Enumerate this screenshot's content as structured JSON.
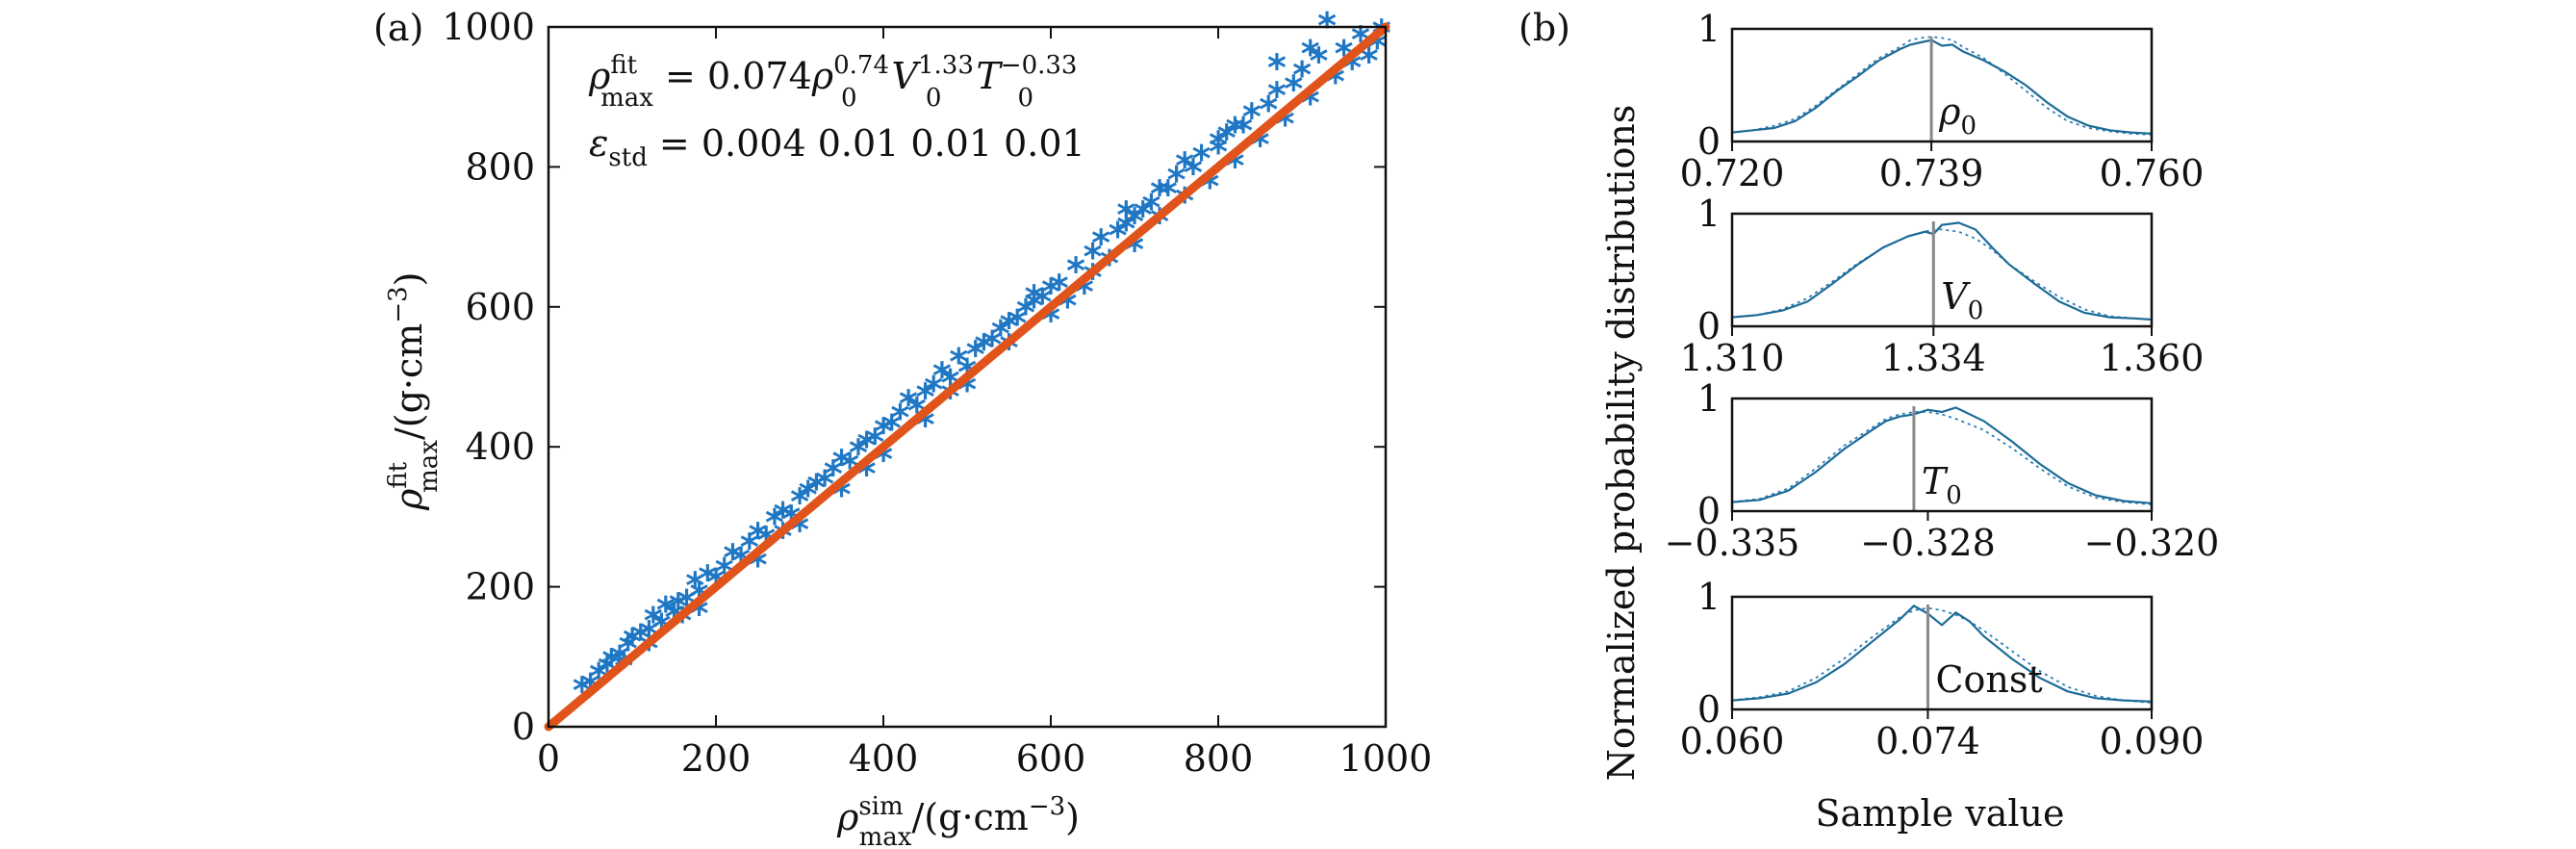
{
  "colors": {
    "scatter": "#1f77c4",
    "fit_line": "#e0541b",
    "pdf_solid": "#1d6b96",
    "pdf_dotted": "#2a7fb5",
    "marker_line": "#888888",
    "axis": "#111111"
  },
  "chart_data": [
    {
      "type": "scatter",
      "panel_label": "(a)",
      "xlabel": "ρ_max^sim/(g·cm⁻³)",
      "ylabel": "ρ_max^fit/(g·cm⁻³)",
      "xlabel_parts": {
        "rho": "ρ",
        "sub": "max",
        "sup": "sim",
        "rest": "/(g·cm",
        "exp": "−3",
        "close": ")"
      },
      "ylabel_parts": {
        "rho": "ρ",
        "sub": "max",
        "sup": "fit",
        "rest": "/(g·cm",
        "exp": "−3",
        "close": ")"
      },
      "xlim": [
        0,
        1000
      ],
      "ylim": [
        0,
        1000
      ],
      "xticks": [
        0,
        200,
        400,
        600,
        800,
        1000
      ],
      "yticks": [
        0,
        200,
        400,
        600,
        800,
        1000
      ],
      "xtick_labels": [
        "0",
        "200",
        "400",
        "600",
        "800",
        "1000"
      ],
      "ytick_labels": [
        "0",
        "200",
        "400",
        "600",
        "800",
        "1000"
      ],
      "marker": "*",
      "annotations": {
        "formula": "ρ_max^fit = 0.074ρ0^0.74 V0^1.33 T0^−0.33",
        "formula_parts": {
          "lhs_rho": "ρ",
          "lhs_sub": "max",
          "lhs_sup": "fit",
          "eq": " = 0.074",
          "rho0": "ρ",
          "rho0_sub": "0",
          "rho0_sup": "0.74",
          "v": "V",
          "v_sub": "0",
          "v_sup": "1.33",
          "t": "T",
          "t_sub": "0",
          "t_sup": "−0.33"
        },
        "std": "ε_std = 0.004 0.01 0.01 0.01",
        "std_parts": {
          "eps": "ε",
          "eps_sub": "std",
          "values": " = 0.004  0.01  0.01  0.01"
        }
      },
      "fit_line": {
        "x": [
          0,
          1000
        ],
        "y": [
          0,
          1000
        ]
      },
      "points": [
        [
          40,
          50
        ],
        [
          50,
          55
        ],
        [
          60,
          70
        ],
        [
          70,
          80
        ],
        [
          75,
          90
        ],
        [
          85,
          95
        ],
        [
          95,
          110
        ],
        [
          100,
          120
        ],
        [
          110,
          125
        ],
        [
          120,
          130
        ],
        [
          125,
          150
        ],
        [
          135,
          140
        ],
        [
          140,
          165
        ],
        [
          150,
          155
        ],
        [
          155,
          170
        ],
        [
          165,
          175
        ],
        [
          175,
          200
        ],
        [
          180,
          185
        ],
        [
          190,
          210
        ],
        [
          200,
          205
        ],
        [
          210,
          220
        ],
        [
          220,
          240
        ],
        [
          230,
          235
        ],
        [
          240,
          255
        ],
        [
          250,
          270
        ],
        [
          260,
          265
        ],
        [
          270,
          290
        ],
        [
          280,
          300
        ],
        [
          290,
          295
        ],
        [
          300,
          320
        ],
        [
          310,
          330
        ],
        [
          320,
          340
        ],
        [
          330,
          345
        ],
        [
          340,
          360
        ],
        [
          350,
          375
        ],
        [
          360,
          370
        ],
        [
          370,
          390
        ],
        [
          380,
          400
        ],
        [
          390,
          405
        ],
        [
          400,
          420
        ],
        [
          410,
          425
        ],
        [
          420,
          440
        ],
        [
          430,
          460
        ],
        [
          440,
          450
        ],
        [
          450,
          470
        ],
        [
          460,
          480
        ],
        [
          470,
          500
        ],
        [
          480,
          490
        ],
        [
          490,
          520
        ],
        [
          500,
          505
        ],
        [
          510,
          530
        ],
        [
          520,
          540
        ],
        [
          530,
          545
        ],
        [
          540,
          560
        ],
        [
          550,
          570
        ],
        [
          560,
          575
        ],
        [
          570,
          590
        ],
        [
          580,
          600
        ],
        [
          590,
          605
        ],
        [
          600,
          620
        ],
        [
          610,
          625
        ],
        [
          620,
          600
        ],
        [
          630,
          650
        ],
        [
          640,
          620
        ],
        [
          650,
          670
        ],
        [
          660,
          690
        ],
        [
          670,
          660
        ],
        [
          680,
          700
        ],
        [
          690,
          710
        ],
        [
          700,
          680
        ],
        [
          710,
          730
        ],
        [
          720,
          740
        ],
        [
          730,
          720
        ],
        [
          740,
          760
        ],
        [
          750,
          780
        ],
        [
          760,
          750
        ],
        [
          770,
          790
        ],
        [
          780,
          810
        ],
        [
          790,
          770
        ],
        [
          800,
          820
        ],
        [
          810,
          840
        ],
        [
          820,
          800
        ],
        [
          830,
          850
        ],
        [
          840,
          870
        ],
        [
          850,
          830
        ],
        [
          860,
          880
        ],
        [
          870,
          900
        ],
        [
          880,
          860
        ],
        [
          890,
          910
        ],
        [
          900,
          930
        ],
        [
          910,
          890
        ],
        [
          920,
          950
        ],
        [
          930,
          1000
        ],
        [
          940,
          920
        ],
        [
          950,
          960
        ],
        [
          960,
          940
        ],
        [
          970,
          980
        ],
        [
          980,
          950
        ],
        [
          990,
          970
        ],
        [
          995,
          990
        ],
        [
          730,
          760
        ],
        [
          760,
          800
        ],
        [
          820,
          850
        ],
        [
          870,
          940
        ],
        [
          600,
          580
        ],
        [
          550,
          540
        ],
        [
          450,
          430
        ],
        [
          350,
          330
        ],
        [
          250,
          230
        ],
        [
          180,
          160
        ],
        [
          300,
          280
        ],
        [
          400,
          380
        ],
        [
          500,
          480
        ],
        [
          700,
          720
        ],
        [
          650,
          640
        ],
        [
          580,
          610
        ],
        [
          480,
          470
        ],
        [
          380,
          360
        ],
        [
          280,
          270
        ],
        [
          160,
          150
        ],
        [
          120,
          110
        ],
        [
          90,
          85
        ],
        [
          690,
          730
        ],
        [
          800,
          830
        ],
        [
          910,
          960
        ]
      ]
    },
    {
      "type": "line",
      "panel_label": "(b)",
      "ylabel": "Normalized probability distributions",
      "xlabel": "Sample value",
      "subplots": [
        {
          "param": "ρ0",
          "param_parts": {
            "sym": "ρ",
            "sub": "0"
          },
          "xlim": [
            0.72,
            0.76
          ],
          "xtick_labels": [
            "0.720",
            "0.739",
            "0.760"
          ],
          "xticks": [
            0.72,
            0.739,
            0.76
          ],
          "ylim": [
            0,
            1
          ],
          "ytick_labels": [
            "0",
            "1"
          ],
          "marker_x": 0.739,
          "solid_x": [
            0.72,
            0.722,
            0.724,
            0.726,
            0.728,
            0.73,
            0.732,
            0.734,
            0.736,
            0.737,
            0.738,
            0.739,
            0.74,
            0.741,
            0.742,
            0.744,
            0.746,
            0.748,
            0.75,
            0.752,
            0.754,
            0.756,
            0.758,
            0.76
          ],
          "solid_y": [
            0.08,
            0.1,
            0.12,
            0.18,
            0.3,
            0.45,
            0.58,
            0.72,
            0.82,
            0.86,
            0.88,
            0.9,
            0.85,
            0.86,
            0.8,
            0.72,
            0.62,
            0.5,
            0.35,
            0.22,
            0.14,
            0.1,
            0.08,
            0.07
          ],
          "dotted_y": [
            0.08,
            0.1,
            0.14,
            0.2,
            0.32,
            0.46,
            0.6,
            0.74,
            0.84,
            0.9,
            0.92,
            0.93,
            0.92,
            0.9,
            0.84,
            0.74,
            0.6,
            0.45,
            0.3,
            0.18,
            0.12,
            0.09,
            0.07,
            0.06
          ]
        },
        {
          "param": "V0",
          "param_parts": {
            "sym": "V",
            "sub": "0"
          },
          "xlim": [
            1.31,
            1.36
          ],
          "xtick_labels": [
            "1.310",
            "1.334",
            "1.360"
          ],
          "xticks": [
            1.31,
            1.334,
            1.36
          ],
          "ylim": [
            0,
            1
          ],
          "ytick_labels": [
            "0",
            "1"
          ],
          "marker_x": 1.334,
          "solid_x": [
            1.31,
            1.313,
            1.316,
            1.319,
            1.322,
            1.325,
            1.328,
            1.331,
            1.333,
            1.334,
            1.335,
            1.337,
            1.339,
            1.341,
            1.343,
            1.346,
            1.349,
            1.352,
            1.355,
            1.358,
            1.36
          ],
          "solid_y": [
            0.08,
            0.1,
            0.14,
            0.22,
            0.38,
            0.55,
            0.7,
            0.8,
            0.84,
            0.82,
            0.9,
            0.92,
            0.86,
            0.7,
            0.55,
            0.38,
            0.22,
            0.12,
            0.08,
            0.07,
            0.06
          ],
          "dotted_y": [
            0.08,
            0.1,
            0.15,
            0.25,
            0.4,
            0.56,
            0.7,
            0.8,
            0.84,
            0.86,
            0.86,
            0.84,
            0.78,
            0.68,
            0.55,
            0.4,
            0.26,
            0.15,
            0.09,
            0.07,
            0.06
          ]
        },
        {
          "param": "T0",
          "param_parts": {
            "sym": "T",
            "sub": "0"
          },
          "xlim": [
            -0.335,
            -0.32
          ],
          "xtick_labels": [
            "−0.335",
            "−0.328",
            "−0.320"
          ],
          "xticks": [
            -0.335,
            -0.328,
            -0.32
          ],
          "ylim": [
            0,
            1
          ],
          "ytick_labels": [
            "0",
            "1"
          ],
          "marker_x": -0.3285,
          "solid_x": [
            -0.335,
            -0.334,
            -0.333,
            -0.332,
            -0.331,
            -0.33,
            -0.3295,
            -0.329,
            -0.3285,
            -0.328,
            -0.3275,
            -0.327,
            -0.326,
            -0.325,
            -0.324,
            -0.323,
            -0.322,
            -0.321,
            -0.32
          ],
          "solid_y": [
            0.08,
            0.1,
            0.18,
            0.35,
            0.55,
            0.72,
            0.8,
            0.84,
            0.86,
            0.9,
            0.88,
            0.92,
            0.8,
            0.62,
            0.42,
            0.25,
            0.14,
            0.09,
            0.07
          ],
          "dotted_y": [
            0.08,
            0.11,
            0.2,
            0.38,
            0.58,
            0.74,
            0.82,
            0.86,
            0.88,
            0.88,
            0.86,
            0.82,
            0.72,
            0.56,
            0.38,
            0.22,
            0.12,
            0.08,
            0.06
          ]
        },
        {
          "param": "Const",
          "param_parts": {
            "sym": "Const",
            "sub": ""
          },
          "xlim": [
            0.06,
            0.09
          ],
          "xtick_labels": [
            "0.060",
            "0.074",
            "0.090"
          ],
          "xticks": [
            0.06,
            0.074,
            0.09
          ],
          "ylim": [
            0,
            1
          ],
          "ytick_labels": [
            "0",
            "1"
          ],
          "marker_x": 0.074,
          "solid_x": [
            0.06,
            0.062,
            0.064,
            0.066,
            0.068,
            0.07,
            0.072,
            0.073,
            0.074,
            0.075,
            0.076,
            0.077,
            0.078,
            0.08,
            0.082,
            0.084,
            0.086,
            0.088,
            0.09
          ],
          "solid_y": [
            0.08,
            0.1,
            0.14,
            0.24,
            0.4,
            0.6,
            0.8,
            0.92,
            0.85,
            0.75,
            0.86,
            0.78,
            0.65,
            0.45,
            0.28,
            0.16,
            0.1,
            0.08,
            0.07
          ],
          "dotted_y": [
            0.08,
            0.11,
            0.16,
            0.28,
            0.45,
            0.64,
            0.82,
            0.88,
            0.9,
            0.88,
            0.84,
            0.78,
            0.7,
            0.52,
            0.34,
            0.2,
            0.12,
            0.08,
            0.06
          ]
        }
      ]
    }
  ]
}
